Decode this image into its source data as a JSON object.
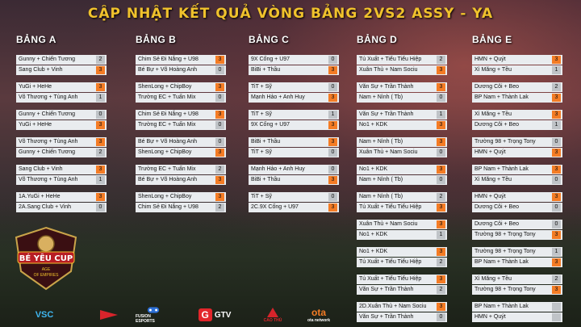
{
  "title": "CẬP NHẬT KẾT QUẢ VÒNG BẢNG 2VS2 ASSY - YA",
  "colors": {
    "title": "#f0c22c",
    "win": "#f47c25",
    "loss": "#bfc3c7",
    "row": "#e9ecef"
  },
  "groups": [
    {
      "name": "BẢNG A",
      "matches": [
        [
          [
            "Gunny + Chiến Tương",
            "2",
            false
          ],
          [
            "Sang Club + Vinh",
            "3",
            true
          ]
        ],
        [
          [
            "YuGi + HeHe",
            "3",
            true
          ],
          [
            "Võ Thương + Tùng Anh",
            "1",
            false
          ]
        ],
        [
          [
            "Gunny + Chiến Tương",
            "0",
            false
          ],
          [
            "YuGi + HeHe",
            "3",
            true
          ]
        ],
        [
          [
            "Võ Thương + Tùng Anh",
            "3",
            true
          ],
          [
            "Gunny + Chiến Tương",
            "2",
            false
          ]
        ],
        [
          [
            "Sang Club + Vinh",
            "3",
            true
          ],
          [
            "Võ Thương + Tùng Anh",
            "1",
            false
          ]
        ],
        [
          [
            "1A.YuGi + HeHe",
            "3",
            true
          ],
          [
            "2A.Sang Club + Vinh",
            "0",
            false
          ]
        ]
      ]
    },
    {
      "name": "BẢNG B",
      "matches": [
        [
          [
            "Chim Sẻ Đi Nắng + U98",
            "3",
            true
          ],
          [
            "Bé Bự + Võ Hoàng Anh",
            "0",
            false
          ]
        ],
        [
          [
            "ShenLong + ChipBoy",
            "3",
            true
          ],
          [
            "Trường EC + Tuấn Mix",
            "0",
            false
          ]
        ],
        [
          [
            "Chim Sẻ Đi Nắng + U98",
            "3",
            true
          ],
          [
            "Trường EC + Tuấn Mix",
            "0",
            false
          ]
        ],
        [
          [
            "Bé Bự + Võ Hoàng Anh",
            "0",
            false
          ],
          [
            "ShenLong + ChipBoy",
            "3",
            true
          ]
        ],
        [
          [
            "Trường EC + Tuấn Mix",
            "2",
            false
          ],
          [
            "Bé Bự + Võ Hoàng Anh",
            "3",
            true
          ]
        ],
        [
          [
            "ShenLong + ChipBoy",
            "3",
            true
          ],
          [
            "Chim Sẻ Đi Nắng + U98",
            "2",
            false
          ]
        ]
      ]
    },
    {
      "name": "BẢNG C",
      "matches": [
        [
          [
            "9X Cống + U97",
            "0",
            false
          ],
          [
            "BiBi + Thầu",
            "3",
            true
          ]
        ],
        [
          [
            "TiT + Sỹ",
            "0",
            false
          ],
          [
            "Mạnh Hảo + Anh Huy",
            "3",
            true
          ]
        ],
        [
          [
            "TiT + Sỹ",
            "1",
            false
          ],
          [
            "9X Cống + U97",
            "3",
            true
          ]
        ],
        [
          [
            "BiBi + Thầu",
            "3",
            true
          ],
          [
            "TiT + Sỹ",
            "0",
            false
          ]
        ],
        [
          [
            "Mạnh Hảo + Anh Huy",
            "0",
            false
          ],
          [
            "BiBi + Thầu",
            "3",
            true
          ]
        ],
        [
          [
            "TiT + Sỹ",
            "0",
            false
          ],
          [
            "2C.9X Cống + U97",
            "3",
            true
          ]
        ]
      ]
    },
    {
      "name": "BẢNG D",
      "matches": [
        [
          [
            "Tú Xuất + Tiểu Tiểu Hiệp",
            "2",
            false
          ],
          [
            "Xuân Thủ + Nam Sociu",
            "3",
            true
          ]
        ],
        [
          [
            "Văn Sự + Trần Thành",
            "3",
            true
          ],
          [
            "Nam + Nình ( Tb)",
            "0",
            false
          ]
        ],
        [
          [
            "Văn Sự + Trần Thành",
            "1",
            false
          ],
          [
            "No1 + KDK",
            "3",
            true
          ]
        ],
        [
          [
            "Nam + Nình ( Tb)",
            "3",
            true
          ],
          [
            "Xuân Thủ + Nam Sociu",
            "0",
            false
          ]
        ],
        [
          [
            "No1 + KDK",
            "3",
            true
          ],
          [
            "Nam + Nình ( Tb)",
            "0",
            false
          ]
        ],
        [
          [
            "Nam + Nình ( Tb)",
            "2",
            false
          ],
          [
            "Tú Xuất + Tiểu Tiểu Hiệp",
            "3",
            true
          ]
        ],
        [
          [
            "Xuân Thủ + Nam Sociu",
            "3",
            true
          ],
          [
            "No1 + KDK",
            "1",
            false
          ]
        ],
        [
          [
            "No1 + KDK",
            "3",
            true
          ],
          [
            "Tú Xuất + Tiểu Tiểu Hiệp",
            "2",
            false
          ]
        ],
        [
          [
            "Tú Xuất + Tiểu Tiểu Hiệp",
            "3",
            true
          ],
          [
            "Văn Sự + Trần Thành",
            "2",
            false
          ]
        ],
        [
          [
            "2D.Xuân Thủ + Nam Sociu",
            "3",
            true
          ],
          [
            "Văn Sự + Trần Thành",
            "0",
            false
          ]
        ]
      ]
    },
    {
      "name": "BẢNG E",
      "matches": [
        [
          [
            "HMN + Quýt",
            "3",
            true
          ],
          [
            "Xì Măng + Tều",
            "1",
            false
          ]
        ],
        [
          [
            "Dương Côi + Beo",
            "2",
            false
          ],
          [
            "BP Nam + Thành Lak",
            "3",
            true
          ]
        ],
        [
          [
            "Xì Măng + Tều",
            "3",
            true
          ],
          [
            "Dương Côi + Beo",
            "1",
            false
          ]
        ],
        [
          [
            "Trường 98 + Trọng Tony",
            "0",
            false
          ],
          [
            "HMN + Quýt",
            "3",
            true
          ]
        ],
        [
          [
            "BP Nam + Thành Lak",
            "3",
            true
          ],
          [
            "Xì Măng + Tều",
            "0",
            false
          ]
        ],
        [
          [
            "HMN + Quýt",
            "3",
            true
          ],
          [
            "Dương Côi + Beo",
            "0",
            false
          ]
        ],
        [
          [
            "Dương Côi + Beo",
            "0",
            false
          ],
          [
            "Trường 98 + Trọng Tony",
            "3",
            true
          ]
        ],
        [
          [
            "Trường 98 + Trọng Tony",
            "1",
            false
          ],
          [
            "BP Nam + Thành Lak",
            "3",
            true
          ]
        ],
        [
          [
            "Xì Măng + Tều",
            "2",
            false
          ],
          [
            "Trường 98 + Trọng Tony",
            "3",
            true
          ]
        ],
        [
          [
            "BP Nam + Thành Lak",
            "",
            false
          ],
          [
            "HMN + Quýt",
            "",
            false
          ]
        ]
      ]
    }
  ],
  "badge": {
    "line1": "BÉ YÊU CUP",
    "line2": "AGE",
    "line3": "OF EMPIRES"
  },
  "sponsors": [
    "VSC",
    "",
    "FUSION ESPORTS",
    "GTV",
    "CAO THỦ",
    "ota network"
  ]
}
